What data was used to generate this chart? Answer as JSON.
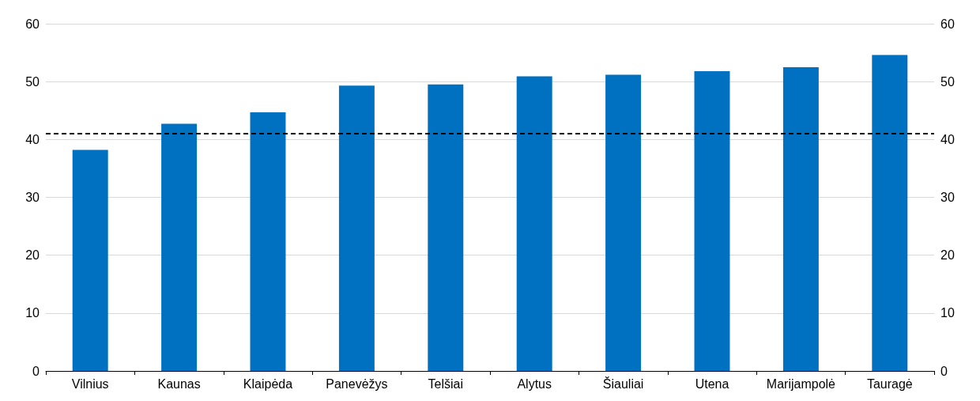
{
  "chart_data": {
    "type": "bar",
    "categories": [
      "Vilnius",
      "Kaunas",
      "Klaipėda",
      "Panevėžys",
      "Telšiai",
      "Alytus",
      "Šiauliai",
      "Utena",
      "Marijampolė",
      "Tauragė"
    ],
    "values": [
      38.2,
      42.7,
      44.7,
      49.3,
      49.5,
      50.9,
      51.2,
      51.8,
      52.5,
      54.6
    ],
    "color": "#0070c0",
    "ylim": [
      0,
      60
    ],
    "yticks": [
      0,
      10,
      20,
      30,
      40,
      50,
      60
    ],
    "y2lim": [
      0,
      60
    ],
    "y2ticks": [
      0,
      10,
      20,
      30,
      40,
      50,
      60
    ],
    "grid": "y",
    "ref_lines": [
      {
        "axis": "y",
        "value": 41,
        "color": "#000000",
        "line_style": "dashed"
      }
    ]
  }
}
